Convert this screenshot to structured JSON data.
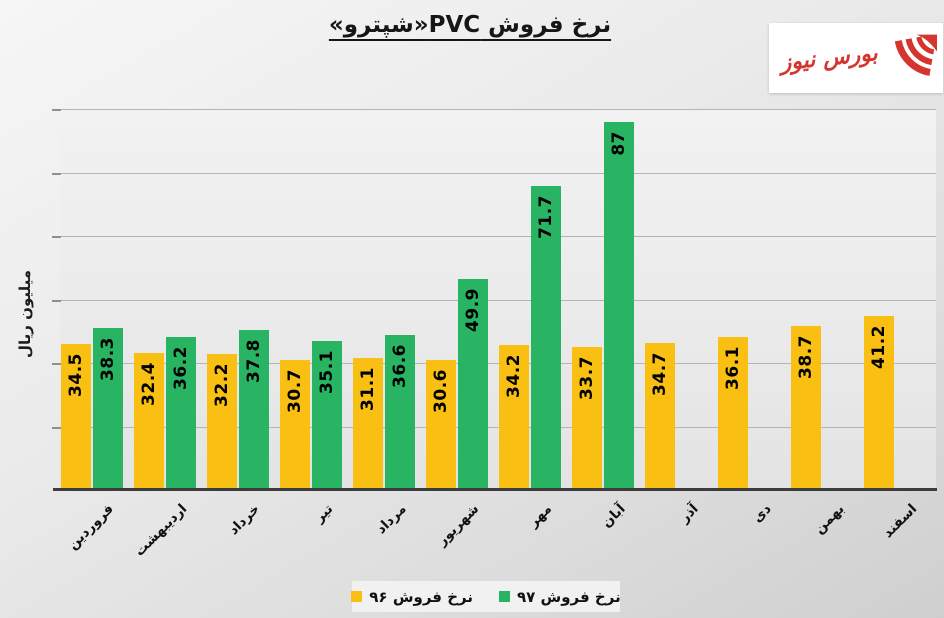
{
  "title": "نرخ فروش PVC«شپترو»",
  "logo": {
    "name": "بورس نیوز",
    "color": "#d5342f"
  },
  "chart_data": {
    "type": "bar",
    "title": "نرخ فروش PVC«شپترو»",
    "ylabel": "میلیون ریال",
    "xlabel": "",
    "ylim": [
      0,
      90
    ],
    "y_major_unit": 15,
    "grid": true,
    "y_tick_labels_visible": false,
    "legend_position": "bottom",
    "categories": [
      "فروردین",
      "اردیبهشت",
      "خرداد",
      "تیر",
      "مرداد",
      "شهریور",
      "مهر",
      "آبان",
      "آذر",
      "دی",
      "بهمن",
      "اسفند"
    ],
    "series": [
      {
        "name": "نرخ فروش ۹۶",
        "color": "#f9c013",
        "values": [
          34.5,
          32.4,
          32.2,
          30.7,
          31.1,
          30.6,
          34.2,
          33.7,
          34.7,
          36.1,
          38.7,
          41.2
        ]
      },
      {
        "name": "نرخ فروش ۹۷",
        "color": "#28b463",
        "values": [
          38.3,
          36.2,
          37.8,
          35.1,
          36.6,
          49.9,
          71.7,
          87,
          null,
          null,
          null,
          null
        ]
      }
    ],
    "value_labels": "inside-end, rotated 90°",
    "colors": {
      "axis": "#3c3c3c",
      "gridline": "#b4b4b4",
      "plot_bg": "#ececec",
      "page_bg": "#e4e4e4"
    }
  }
}
